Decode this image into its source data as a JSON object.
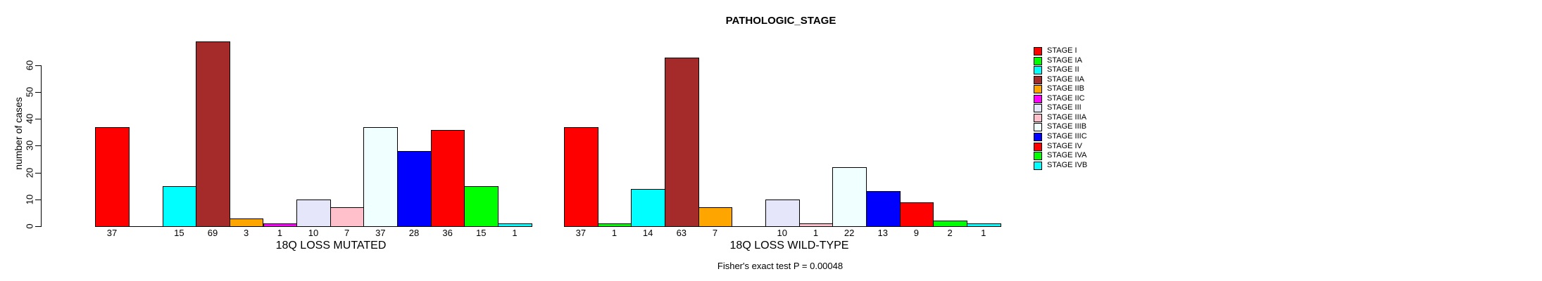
{
  "title": "PATHOLOGIC_STAGE",
  "chart_data": {
    "type": "bar",
    "title": "PATHOLOGIC_STAGE",
    "ylabel": "number of cases",
    "yticks": [
      0,
      10,
      20,
      30,
      40,
      50,
      60
    ],
    "ylim": [
      0,
      60
    ],
    "grid": false,
    "legend_position": "right",
    "categories": [
      "STAGE I",
      "STAGE IA",
      "STAGE II",
      "STAGE IIA",
      "STAGE IIB",
      "STAGE IIC",
      "STAGE III",
      "STAGE IIIA",
      "STAGE IIIB",
      "STAGE IIIC",
      "STAGE IV",
      "STAGE IVA",
      "STAGE IVB"
    ],
    "colors": [
      "#FF0000",
      "#00FF00",
      "#00FFFF",
      "#A52A2A",
      "#FFA500",
      "#FF00FF",
      "#E6E6FA",
      "#FFC0CB",
      "#F0FFFF",
      "#0000FF",
      "#FF0000",
      "#00FF00",
      "#00FFFF"
    ],
    "panels": [
      {
        "xlabel": "18Q LOSS MUTATED",
        "values": [
          37,
          0,
          15,
          69,
          3,
          1,
          10,
          7,
          37,
          28,
          36,
          15,
          1
        ],
        "bar_count_labels": [
          "37",
          "",
          "15",
          "69",
          "3",
          "1",
          "10",
          "7",
          "37",
          "28",
          "36",
          "15",
          "1"
        ]
      },
      {
        "xlabel": "18Q LOSS WILD-TYPE",
        "values": [
          37,
          1,
          14,
          63,
          7,
          0,
          10,
          1,
          22,
          13,
          9,
          2,
          1
        ],
        "bar_count_labels": [
          "37",
          "1",
          "14",
          "63",
          "7",
          "",
          "10",
          "1",
          "22",
          "13",
          "9",
          "2",
          "1"
        ]
      }
    ],
    "annotation": "Fisher's exact test P = 0.00048"
  }
}
